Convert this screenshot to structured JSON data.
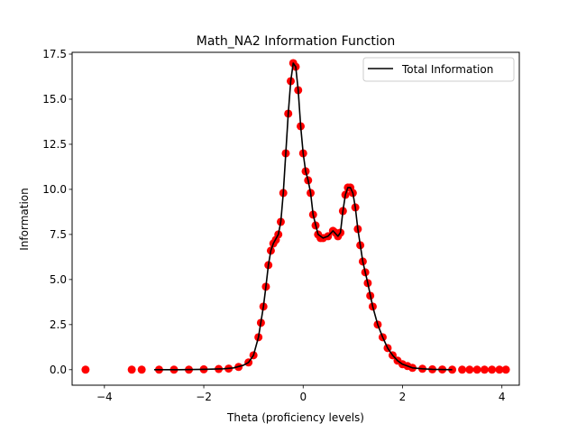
{
  "chart_data": {
    "type": "line",
    "title": "Math_NA2 Information Function",
    "xlabel": "Theta (proficiency levels)",
    "ylabel": "Information",
    "xlim": [
      -4.65,
      4.35
    ],
    "ylim": [
      -0.86,
      17.6
    ],
    "x_ticks": [
      -4,
      -2,
      0,
      2,
      4
    ],
    "x_tick_labels": [
      "−4",
      "−2",
      "0",
      "2",
      "4"
    ],
    "y_ticks": [
      0.0,
      2.5,
      5.0,
      7.5,
      10.0,
      12.5,
      15.0,
      17.5
    ],
    "y_tick_labels": [
      "0.0",
      "2.5",
      "5.0",
      "7.5",
      "10.0",
      "12.5",
      "15.0",
      "17.5"
    ],
    "grid": false,
    "legend_position": "top-right",
    "series": [
      {
        "name": "Total Information",
        "kind": "line",
        "color": "#000000",
        "x": [
          -3.0,
          -2.5,
          -2.0,
          -1.6,
          -1.4,
          -1.2,
          -1.1,
          -1.0,
          -0.9,
          -0.8,
          -0.75,
          -0.7,
          -0.65,
          -0.6,
          -0.5,
          -0.45,
          -0.4,
          -0.35,
          -0.3,
          -0.25,
          -0.2,
          -0.15,
          -0.1,
          -0.05,
          0.0,
          0.05,
          0.1,
          0.15,
          0.2,
          0.3,
          0.4,
          0.5,
          0.6,
          0.7,
          0.75,
          0.8,
          0.85,
          0.9,
          0.95,
          1.0,
          1.05,
          1.1,
          1.15,
          1.2,
          1.3,
          1.4,
          1.5,
          1.6,
          1.7,
          1.8,
          1.9,
          2.0,
          2.2,
          2.4,
          2.6,
          3.0
        ],
        "y": [
          0.0,
          0.0,
          0.02,
          0.05,
          0.1,
          0.25,
          0.4,
          0.8,
          1.8,
          3.5,
          4.6,
          5.8,
          6.6,
          7.0,
          7.5,
          8.2,
          9.8,
          12.0,
          14.2,
          16.0,
          17.0,
          16.8,
          15.5,
          13.5,
          12.0,
          11.0,
          10.5,
          9.8,
          8.6,
          7.5,
          7.3,
          7.4,
          7.7,
          7.4,
          7.6,
          8.8,
          9.7,
          10.1,
          10.1,
          9.8,
          9.0,
          7.8,
          6.9,
          6.0,
          4.8,
          3.5,
          2.5,
          1.8,
          1.2,
          0.8,
          0.5,
          0.3,
          0.1,
          0.05,
          0.02,
          0.0
        ]
      },
      {
        "name": "",
        "kind": "scatter",
        "color": "#ff0000",
        "x": [
          -4.38,
          -3.45,
          -3.25,
          -2.9,
          -2.6,
          -2.3,
          -2.0,
          -1.7,
          -1.5,
          -1.3,
          -1.1,
          -1.0,
          -0.9,
          -0.85,
          -0.8,
          -0.75,
          -0.7,
          -0.65,
          -0.6,
          -0.55,
          -0.5,
          -0.45,
          -0.4,
          -0.35,
          -0.3,
          -0.25,
          -0.2,
          -0.15,
          -0.1,
          -0.05,
          0.0,
          0.05,
          0.1,
          0.15,
          0.2,
          0.25,
          0.3,
          0.35,
          0.4,
          0.5,
          0.6,
          0.65,
          0.7,
          0.75,
          0.8,
          0.85,
          0.9,
          0.95,
          1.0,
          1.05,
          1.1,
          1.15,
          1.2,
          1.25,
          1.3,
          1.35,
          1.4,
          1.5,
          1.6,
          1.7,
          1.8,
          1.9,
          2.0,
          2.1,
          2.2,
          2.4,
          2.6,
          2.8,
          3.0,
          3.2,
          3.35,
          3.5,
          3.65,
          3.8,
          3.95,
          4.08
        ],
        "y": [
          0.0,
          0.0,
          0.0,
          0.0,
          0.0,
          0.0,
          0.02,
          0.04,
          0.06,
          0.15,
          0.4,
          0.8,
          1.8,
          2.6,
          3.5,
          4.6,
          5.8,
          6.6,
          7.0,
          7.2,
          7.5,
          8.2,
          9.8,
          12.0,
          14.2,
          16.0,
          17.0,
          16.8,
          15.5,
          13.5,
          12.0,
          11.0,
          10.5,
          9.8,
          8.6,
          8.0,
          7.5,
          7.3,
          7.3,
          7.4,
          7.7,
          7.6,
          7.4,
          7.6,
          8.8,
          9.7,
          10.1,
          10.1,
          9.8,
          9.0,
          7.8,
          6.9,
          6.0,
          5.4,
          4.8,
          4.1,
          3.5,
          2.5,
          1.8,
          1.2,
          0.8,
          0.5,
          0.3,
          0.2,
          0.1,
          0.05,
          0.02,
          0.01,
          0.0,
          0.0,
          0.0,
          0.0,
          0.0,
          0.0,
          0.0,
          0.0
        ]
      }
    ]
  }
}
